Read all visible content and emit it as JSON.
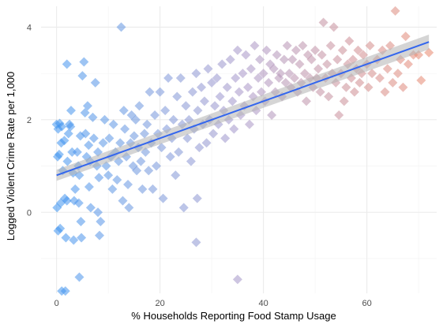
{
  "chart_data": {
    "type": "scatter",
    "title": "",
    "xlabel": "% Households Reporting Food Stamp Usage",
    "ylabel": "Logged Violent Crime Rate per 1,000",
    "xlim": [
      -3,
      73.5
    ],
    "ylim": [
      -1.75,
      4.45
    ],
    "x_ticks": [
      0,
      20,
      40,
      60
    ],
    "y_ticks": [
      0,
      2,
      4
    ],
    "x_tick_labels": [
      "0",
      "20",
      "40",
      "60"
    ],
    "y_tick_labels": [
      "0",
      "2",
      "4"
    ],
    "grid": true,
    "legend": "none",
    "point_color_scale": {
      "low": "#3d94f0",
      "mid": "#a796c8",
      "high": "#e8876e"
    },
    "points": [
      [
        0.0,
        1.9
      ],
      [
        0.3,
        1.8
      ],
      [
        0.6,
        1.92
      ],
      [
        1.0,
        1.85
      ],
      [
        0.2,
        1.2
      ],
      [
        0.5,
        1.25
      ],
      [
        0.1,
        0.1
      ],
      [
        0.8,
        0.2
      ],
      [
        0.3,
        -0.4
      ],
      [
        0.7,
        -0.35
      ],
      [
        1.0,
        -1.7
      ],
      [
        1.7,
        -1.7
      ],
      [
        0.9,
        1.5
      ],
      [
        1.5,
        1.55
      ],
      [
        1.2,
        0.9
      ],
      [
        1.6,
        0.3
      ],
      [
        2.0,
        0.25
      ],
      [
        2.1,
        1.1
      ],
      [
        2.3,
        1.7
      ],
      [
        2.5,
        1.9
      ],
      [
        2.7,
        1.85
      ],
      [
        2.8,
        2.2
      ],
      [
        3.0,
        1.3
      ],
      [
        3.2,
        0.85
      ],
      [
        3.4,
        0.25
      ],
      [
        3.6,
        0.5
      ],
      [
        3.3,
        -0.6
      ],
      [
        1.8,
        -0.55
      ],
      [
        2.0,
        3.2
      ],
      [
        4.0,
        1.3
      ],
      [
        4.2,
        1.0
      ],
      [
        4.4,
        0.8
      ],
      [
        4.6,
        1.65
      ],
      [
        4.3,
        0.2
      ],
      [
        4.7,
        -0.2
      ],
      [
        4.8,
        -0.55
      ],
      [
        4.4,
        -1.4
      ],
      [
        5.0,
        2.95
      ],
      [
        5.3,
        3.25
      ],
      [
        5.5,
        2.15
      ],
      [
        5.6,
        1.7
      ],
      [
        5.8,
        1.2
      ],
      [
        6.0,
        2.3
      ],
      [
        6.2,
        1.45
      ],
      [
        6.5,
        1.1
      ],
      [
        6.3,
        0.55
      ],
      [
        6.6,
        0.1
      ],
      [
        7.0,
        2.05
      ],
      [
        7.2,
        1.6
      ],
      [
        7.5,
        2.8
      ],
      [
        7.8,
        1.0
      ],
      [
        8.0,
        1.3
      ],
      [
        8.2,
        0.75
      ],
      [
        8.0,
        0.0
      ],
      [
        8.3,
        -0.5
      ],
      [
        8.5,
        -0.2
      ],
      [
        9.0,
        1.5
      ],
      [
        9.3,
        2.0
      ],
      [
        9.6,
        1.0
      ],
      [
        10.0,
        0.8
      ],
      [
        10.2,
        1.6
      ],
      [
        10.5,
        1.2
      ],
      [
        10.8,
        0.5
      ],
      [
        11.0,
        1.9
      ],
      [
        11.4,
        1.3
      ],
      [
        11.7,
        0.7
      ],
      [
        12.0,
        1.1
      ],
      [
        12.3,
        1.5
      ],
      [
        12.5,
        4.0
      ],
      [
        12.8,
        0.25
      ],
      [
        13.0,
        2.2
      ],
      [
        13.2,
        1.8
      ],
      [
        13.5,
        1.2
      ],
      [
        13.8,
        0.6
      ],
      [
        14.0,
        0.1
      ],
      [
        14.3,
        1.5
      ],
      [
        14.5,
        2.1
      ],
      [
        14.8,
        1.0
      ],
      [
        15.0,
        1.65
      ],
      [
        15.3,
        2.0
      ],
      [
        15.5,
        0.9
      ],
      [
        15.8,
        1.4
      ],
      [
        16.0,
        2.3
      ],
      [
        16.3,
        1.1
      ],
      [
        16.6,
        0.5
      ],
      [
        17.0,
        1.7
      ],
      [
        17.2,
        1.3
      ],
      [
        17.5,
        1.9
      ],
      [
        17.8,
        0.9
      ],
      [
        18.0,
        2.6
      ],
      [
        18.3,
        1.5
      ],
      [
        18.6,
        0.5
      ],
      [
        19.0,
        2.1
      ],
      [
        19.3,
        1.0
      ],
      [
        19.6,
        1.7
      ],
      [
        20.0,
        2.6
      ],
      [
        20.3,
        1.4
      ],
      [
        20.6,
        0.3
      ],
      [
        21.0,
        2.2
      ],
      [
        21.3,
        1.8
      ],
      [
        21.6,
        2.9
      ],
      [
        22.0,
        1.2
      ],
      [
        22.3,
        1.6
      ],
      [
        22.6,
        2.0
      ],
      [
        23.0,
        0.8
      ],
      [
        23.3,
        2.5
      ],
      [
        23.6,
        1.3
      ],
      [
        24.0,
        2.9
      ],
      [
        24.3,
        1.9
      ],
      [
        24.6,
        0.1
      ],
      [
        25.0,
        2.3
      ],
      [
        25.3,
        1.6
      ],
      [
        25.6,
        2.0
      ],
      [
        26.0,
        1.1
      ],
      [
        26.3,
        2.6
      ],
      [
        26.6,
        1.8
      ],
      [
        27.0,
        3.0
      ],
      [
        27.3,
        2.2
      ],
      [
        27.6,
        1.4
      ],
      [
        27.0,
        -0.65
      ],
      [
        27.2,
        0.3
      ],
      [
        28.0,
        2.7
      ],
      [
        28.3,
        1.9
      ],
      [
        28.6,
        2.4
      ],
      [
        29.0,
        1.5
      ],
      [
        29.3,
        3.1
      ],
      [
        29.6,
        2.0
      ],
      [
        30.0,
        2.8
      ],
      [
        30.3,
        1.7
      ],
      [
        30.6,
        2.3
      ],
      [
        31.0,
        2.9
      ],
      [
        31.3,
        1.9
      ],
      [
        31.6,
        2.5
      ],
      [
        32.0,
        3.2
      ],
      [
        32.3,
        2.2
      ],
      [
        32.6,
        1.6
      ],
      [
        33.0,
        2.7
      ],
      [
        33.3,
        2.0
      ],
      [
        33.6,
        3.3
      ],
      [
        34.0,
        2.4
      ],
      [
        34.3,
        1.8
      ],
      [
        34.6,
        2.9
      ],
      [
        35.0,
        3.5
      ],
      [
        35.3,
        2.6
      ],
      [
        35.6,
        2.1
      ],
      [
        35.0,
        -1.45
      ],
      [
        36.0,
        3.0
      ],
      [
        36.3,
        2.3
      ],
      [
        36.6,
        3.4
      ],
      [
        37.0,
        2.7
      ],
      [
        37.3,
        1.9
      ],
      [
        37.6,
        3.1
      ],
      [
        38.0,
        2.5
      ],
      [
        38.3,
        3.6
      ],
      [
        38.6,
        2.2
      ],
      [
        39.0,
        2.9
      ],
      [
        39.3,
        3.3
      ],
      [
        39.6,
        2.6
      ],
      [
        40.0,
        3.0
      ],
      [
        40.3,
        2.4
      ],
      [
        40.6,
        3.5
      ],
      [
        41.0,
        2.8
      ],
      [
        41.3,
        3.2
      ],
      [
        41.6,
        2.1
      ],
      [
        42.0,
        3.1
      ],
      [
        42.3,
        2.6
      ],
      [
        42.6,
        3.4
      ],
      [
        43.0,
        2.9
      ],
      [
        43.3,
        3.0
      ],
      [
        43.6,
        2.5
      ],
      [
        44.0,
        3.3
      ],
      [
        44.3,
        2.8
      ],
      [
        44.6,
        3.6
      ],
      [
        45.0,
        3.0
      ],
      [
        45.3,
        2.7
      ],
      [
        45.6,
        3.3
      ],
      [
        46.0,
        2.9
      ],
      [
        46.3,
        3.5
      ],
      [
        46.6,
        2.6
      ],
      [
        47.0,
        3.2
      ],
      [
        47.3,
        2.8
      ],
      [
        47.6,
        3.6
      ],
      [
        48.0,
        3.0
      ],
      [
        48.3,
        2.4
      ],
      [
        48.6,
        3.4
      ],
      [
        49.0,
        2.9
      ],
      [
        49.3,
        3.3
      ],
      [
        49.6,
        2.7
      ],
      [
        50.0,
        3.5
      ],
      [
        50.3,
        2.9
      ],
      [
        50.6,
        3.1
      ],
      [
        51.0,
        2.6
      ],
      [
        51.3,
        3.4
      ],
      [
        51.6,
        4.1
      ],
      [
        52.0,
        2.9
      ],
      [
        52.3,
        3.2
      ],
      [
        52.6,
        2.5
      ],
      [
        53.0,
        3.6
      ],
      [
        53.3,
        3.0
      ],
      [
        53.6,
        4.0
      ],
      [
        54.0,
        2.8
      ],
      [
        54.3,
        3.3
      ],
      [
        54.6,
        2.1
      ],
      [
        55.0,
        3.0
      ],
      [
        55.3,
        3.5
      ],
      [
        55.6,
        2.4
      ],
      [
        56.0,
        2.7
      ],
      [
        56.3,
        3.2
      ],
      [
        56.6,
        3.7
      ],
      [
        57.0,
        2.9
      ],
      [
        57.3,
        3.3
      ],
      [
        57.6,
        2.6
      ],
      [
        58.0,
        3.1
      ],
      [
        58.3,
        3.5
      ],
      [
        58.6,
        2.8
      ],
      [
        59.0,
        3.0
      ],
      [
        59.3,
        3.4
      ],
      [
        60.0,
        3.2
      ],
      [
        60.3,
        2.7
      ],
      [
        60.6,
        3.6
      ],
      [
        61.0,
        3.0
      ],
      [
        62.0,
        3.3
      ],
      [
        62.5,
        2.9
      ],
      [
        63.0,
        3.5
      ],
      [
        63.5,
        2.6
      ],
      [
        64.0,
        3.1
      ],
      [
        64.5,
        3.6
      ],
      [
        65.0,
        2.8
      ],
      [
        65.5,
        4.35
      ],
      [
        66.0,
        3.0
      ],
      [
        66.5,
        3.3
      ],
      [
        67.0,
        2.7
      ],
      [
        67.5,
        3.8
      ],
      [
        68.0,
        3.2
      ],
      [
        69.0,
        3.4
      ],
      [
        70.0,
        3.4
      ],
      [
        70.5,
        2.85
      ],
      [
        72.0,
        3.45
      ]
    ],
    "fit_line": {
      "x": [
        0,
        72
      ],
      "y": [
        0.8,
        3.68
      ],
      "ci_lower": [
        0.68,
        3.52
      ],
      "ci_upper": [
        0.92,
        3.84
      ],
      "line_color": "#3366ee",
      "band_color": "#b3b3b3"
    }
  }
}
